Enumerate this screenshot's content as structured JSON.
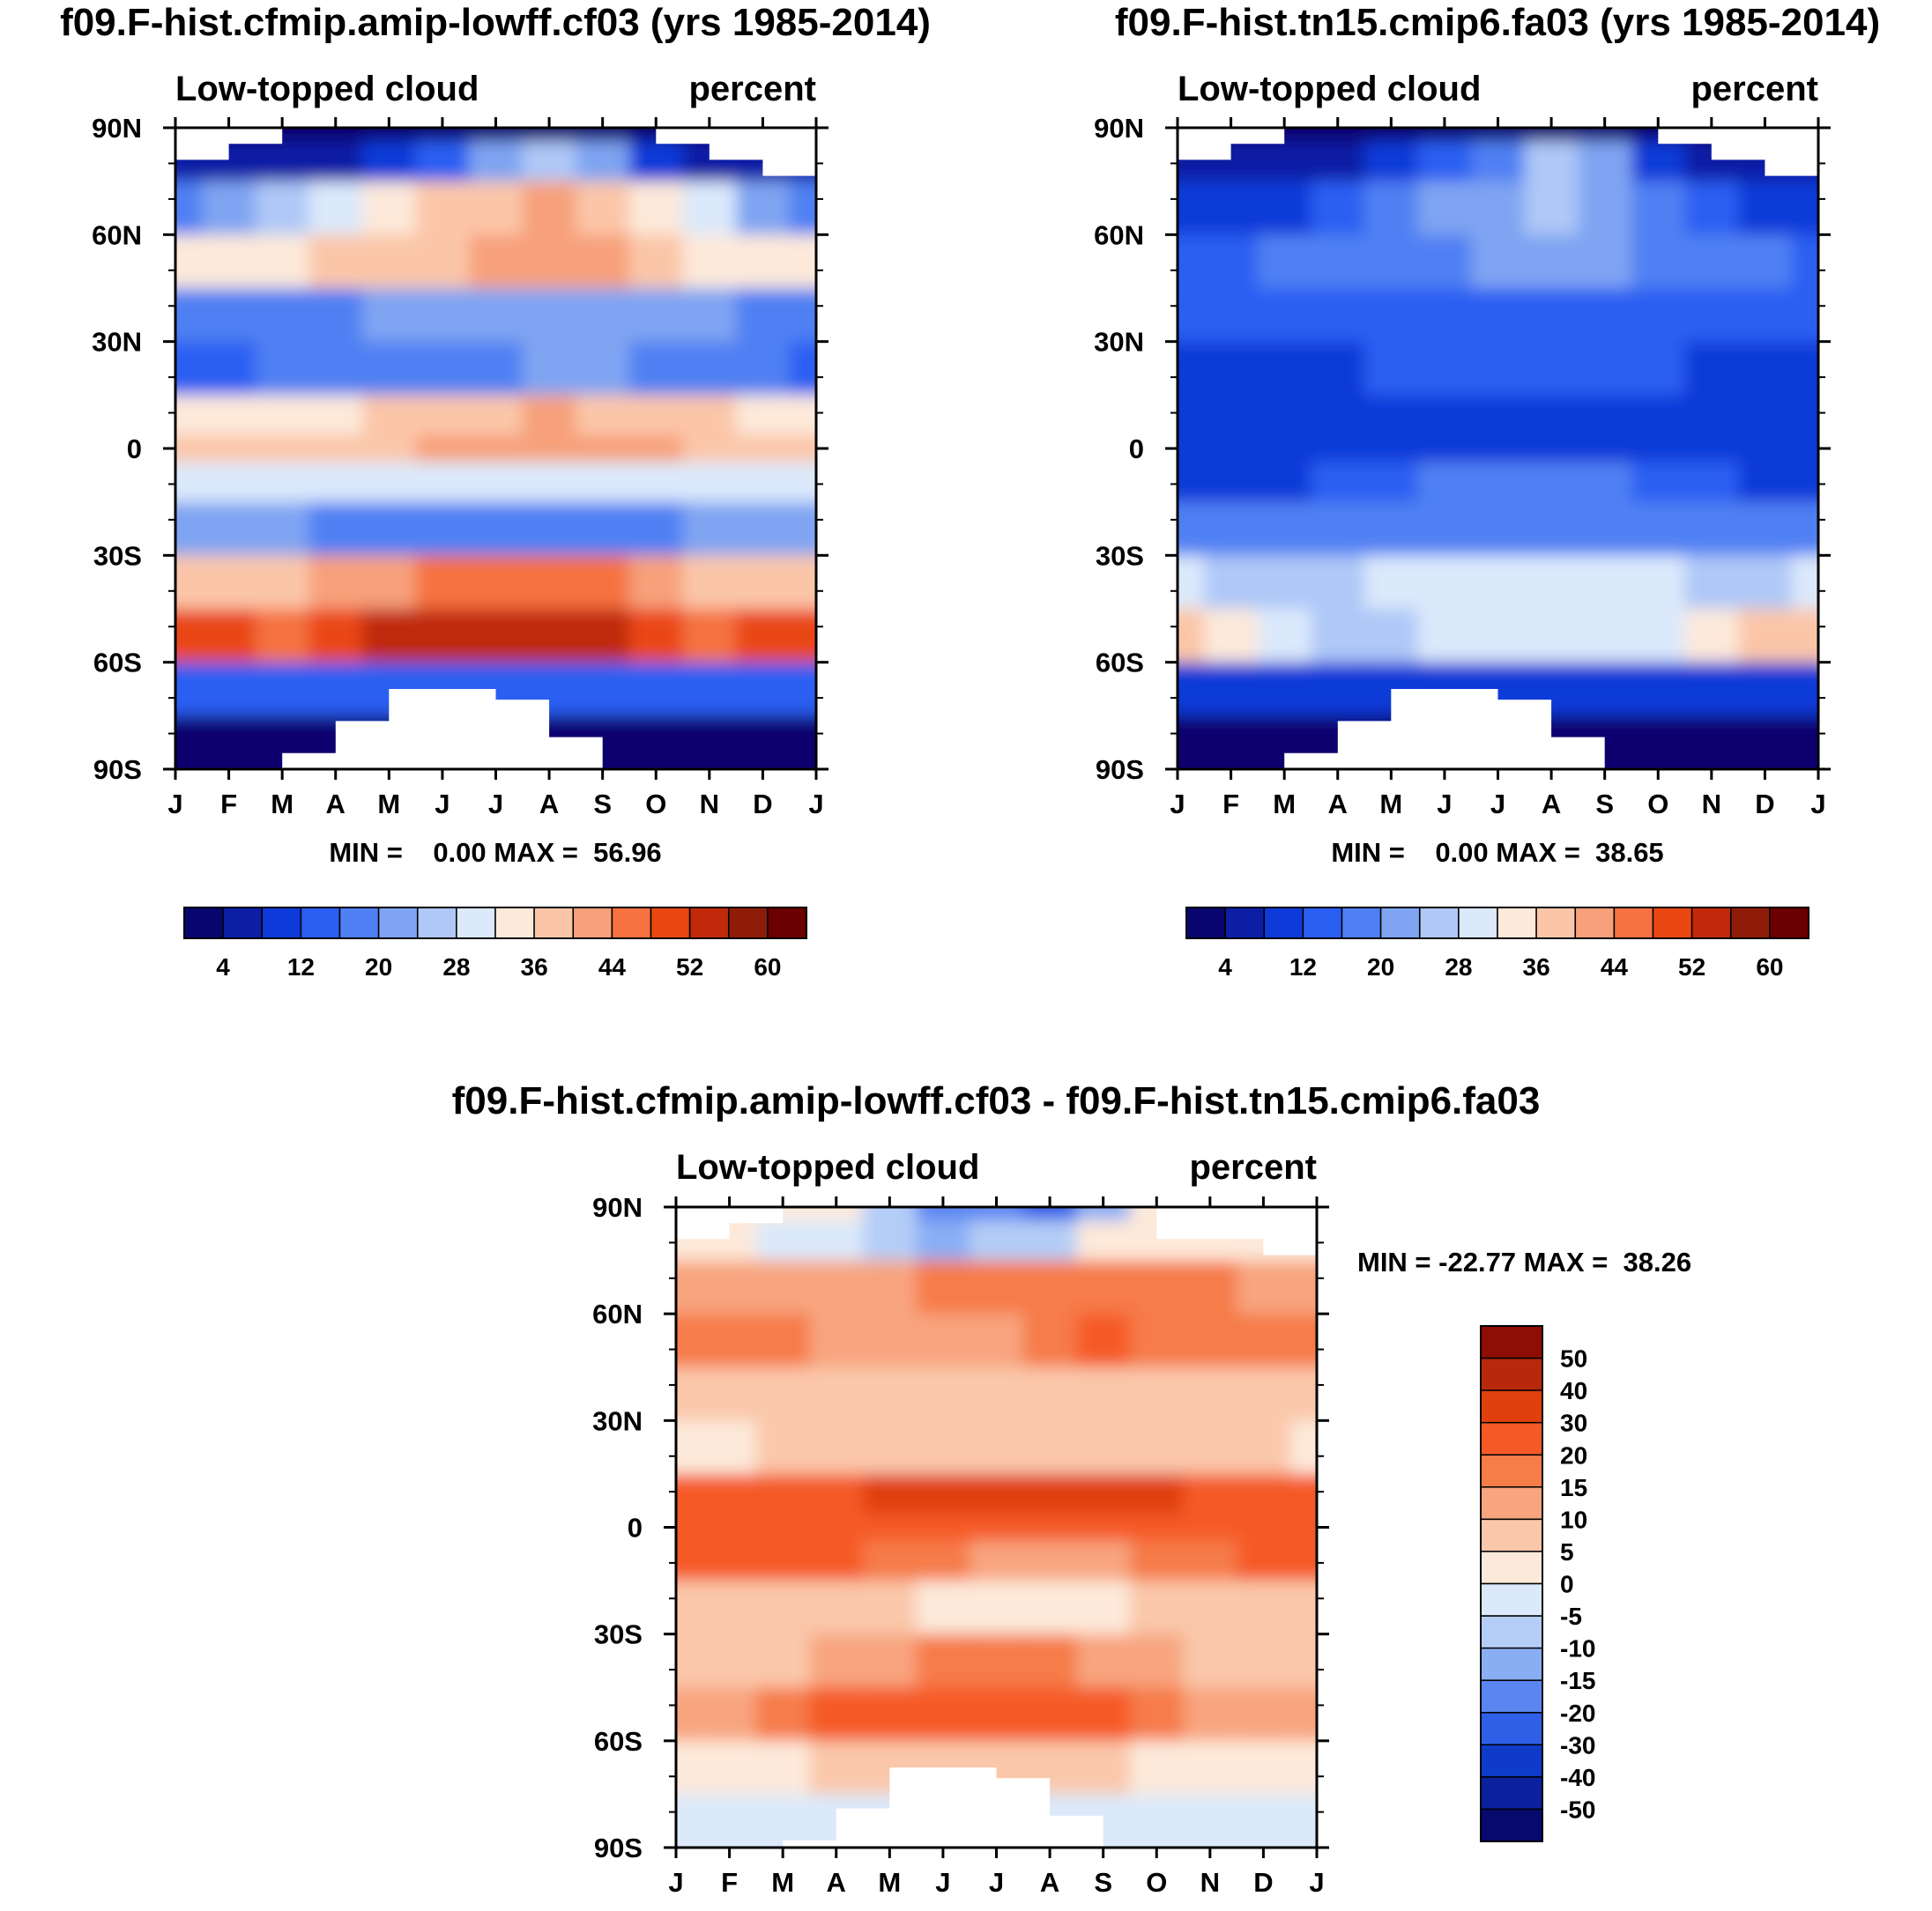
{
  "figure": {
    "panels": [
      {
        "id": "control",
        "title": "f09.F-hist.cfmip.amip-lowff.cf03 (yrs 1985-2014)",
        "left_label": "Low-topped cloud",
        "right_label": "percent",
        "minmax": "MIN =    0.00 MAX =  56.96"
      },
      {
        "id": "test",
        "title": "f09.F-hist.tn15.cmip6.fa03 (yrs 1985-2014)",
        "left_label": "Low-topped cloud",
        "right_label": "percent",
        "minmax": "MIN =    0.00 MAX =  38.65"
      },
      {
        "id": "diff",
        "title": "f09.F-hist.cfmip.amip-lowff.cf03 - f09.F-hist.tn15.cmip6.fa03",
        "left_label": "Low-topped cloud",
        "right_label": "percent",
        "minmax": "MIN = -22.77 MAX =  38.26"
      }
    ],
    "month_ticks": [
      "J",
      "F",
      "M",
      "A",
      "M",
      "J",
      "J",
      "A",
      "S",
      "O",
      "N",
      "D",
      "J"
    ],
    "lat_ticks": [
      "90N",
      "60N",
      "30N",
      "0",
      "30S",
      "60S",
      "90S"
    ],
    "abs_colorbar": {
      "labels": [
        "4",
        "12",
        "20",
        "28",
        "36",
        "44",
        "52",
        "60"
      ],
      "colors": [
        "#08066e",
        "#0c1ea4",
        "#0d3ad8",
        "#2a5ef2",
        "#4f80f3",
        "#7fa4f2",
        "#afc8f7",
        "#dbe9fb",
        "#fde9da",
        "#fbc6a8",
        "#f7a07a",
        "#f57240",
        "#ea4712",
        "#c02a0a",
        "#8e1c08",
        "#6a0000"
      ]
    },
    "diff_colorbar": {
      "labels": [
        "50",
        "40",
        "30",
        "20",
        "15",
        "10",
        "5",
        "0",
        "-5",
        "-10",
        "-15",
        "-20",
        "-30",
        "-40",
        "-50"
      ],
      "colors": [
        "#8e0e04",
        "#b8280a",
        "#e0400c",
        "#f55a26",
        "#f67c48",
        "#f8a47e",
        "#fac7aa",
        "#fde9da",
        "#dbe9fb",
        "#b4cdf7",
        "#8aaef4",
        "#5b86f1",
        "#2f5fe6",
        "#0f3bc9",
        "#0b209c",
        "#07096c"
      ]
    }
  },
  "chart_data": [
    {
      "type": "heatmap",
      "title": "f09.F-hist.cfmip.amip-lowff.cf03 (yrs 1985-2014)",
      "subtitle_left": "Low-topped cloud",
      "subtitle_right": "percent",
      "x": [
        "J",
        "F",
        "M",
        "A",
        "M",
        "J",
        "J",
        "A",
        "S",
        "O",
        "N",
        "D",
        "J"
      ],
      "y": [
        90,
        82.5,
        67.5,
        52.5,
        37.5,
        22.5,
        7.5,
        0,
        -7.5,
        -22.5,
        -37.5,
        -52.5,
        -67.5,
        -82.5,
        -90
      ],
      "xlabel": "",
      "ylabel": "",
      "levels": [
        4,
        8,
        12,
        16,
        20,
        24,
        28,
        32,
        36,
        40,
        44,
        48,
        52,
        56,
        60
      ],
      "zrange": [
        0.0,
        56.96
      ],
      "values": [
        [
          2,
          2,
          2,
          2,
          2,
          2,
          2,
          2,
          2,
          2,
          2,
          2,
          2
        ],
        [
          4,
          4,
          5,
          5,
          9,
          14,
          20,
          27,
          22,
          10,
          6,
          4,
          4
        ],
        [
          18,
          20,
          24,
          28,
          33,
          36,
          38,
          40,
          39,
          33,
          28,
          22,
          18
        ],
        [
          32,
          33,
          35,
          36,
          38,
          39,
          40,
          41,
          40,
          37,
          35,
          33,
          32
        ],
        [
          18,
          18,
          18,
          19,
          20,
          21,
          22,
          23,
          22,
          21,
          20,
          19,
          18
        ],
        [
          15,
          15,
          16,
          17,
          17,
          18,
          19,
          20,
          20,
          18,
          17,
          16,
          15
        ],
        [
          34,
          34,
          34,
          35,
          36,
          37,
          38,
          40,
          39,
          37,
          36,
          35,
          34
        ],
        [
          36,
          36,
          37,
          38,
          39,
          40,
          41,
          43,
          42,
          40,
          38,
          37,
          36
        ],
        [
          28,
          28,
          28,
          28,
          29,
          30,
          31,
          31,
          30,
          29,
          28,
          28,
          28
        ],
        [
          22,
          22,
          20,
          18,
          17,
          16,
          16,
          16,
          16,
          18,
          20,
          22,
          22
        ],
        [
          37,
          37,
          38,
          40,
          42,
          44,
          45,
          45,
          44,
          41,
          39,
          38,
          37
        ],
        [
          50,
          48,
          47,
          50,
          52,
          54,
          55,
          54,
          52,
          48,
          47,
          49,
          50
        ],
        [
          12,
          12,
          12,
          12,
          12,
          12,
          12,
          12,
          12,
          12,
          12,
          12,
          12
        ],
        [
          2,
          2,
          2,
          2,
          2,
          2,
          2,
          2,
          2,
          2,
          2,
          2,
          2
        ],
        [
          2,
          2,
          2,
          2,
          2,
          2,
          2,
          2,
          2,
          2,
          2,
          2,
          2
        ]
      ]
    },
    {
      "type": "heatmap",
      "title": "f09.F-hist.tn15.cmip6.fa03 (yrs 1985-2014)",
      "subtitle_left": "Low-topped cloud",
      "subtitle_right": "percent",
      "x": [
        "J",
        "F",
        "M",
        "A",
        "M",
        "J",
        "J",
        "A",
        "S",
        "O",
        "N",
        "D",
        "J"
      ],
      "y": [
        90,
        82.5,
        67.5,
        52.5,
        37.5,
        22.5,
        7.5,
        0,
        -7.5,
        -22.5,
        -37.5,
        -52.5,
        -67.5,
        -82.5,
        -90
      ],
      "xlabel": "",
      "ylabel": "",
      "levels": [
        4,
        8,
        12,
        16,
        20,
        24,
        28,
        32,
        36,
        40,
        44,
        48,
        52,
        56,
        60
      ],
      "zrange": [
        0.0,
        38.65
      ],
      "values": [
        [
          2,
          2,
          2,
          2,
          2,
          2,
          2,
          2,
          2,
          2,
          2,
          2,
          2
        ],
        [
          4,
          4,
          6,
          7,
          9,
          12,
          18,
          24,
          20,
          10,
          6,
          4,
          4
        ],
        [
          8,
          9,
          11,
          14,
          17,
          20,
          22,
          25,
          23,
          18,
          13,
          10,
          8
        ],
        [
          15,
          15,
          16,
          17,
          18,
          19,
          20,
          21,
          20,
          18,
          17,
          16,
          15
        ],
        [
          12,
          12,
          12,
          13,
          13,
          13,
          13,
          12,
          12,
          12,
          12,
          12,
          12
        ],
        [
          10,
          10,
          10,
          11,
          12,
          12,
          13,
          13,
          12,
          12,
          11,
          11,
          10
        ],
        [
          9,
          9,
          9,
          9,
          9,
          9,
          9,
          9,
          9,
          9,
          9,
          9,
          9
        ],
        [
          10,
          9,
          9,
          9,
          9,
          9,
          10,
          10,
          10,
          10,
          10,
          10,
          10
        ],
        [
          10,
          10,
          10,
          12,
          14,
          16,
          18,
          18,
          16,
          14,
          12,
          10,
          10
        ],
        [
          18,
          18,
          17,
          16,
          16,
          16,
          16,
          16,
          16,
          16,
          17,
          18,
          18
        ],
        [
          28,
          27,
          26,
          27,
          28,
          29,
          30,
          30,
          29,
          28,
          27,
          27,
          28
        ],
        [
          36,
          32,
          28,
          26,
          27,
          28,
          29,
          29,
          28,
          30,
          34,
          36,
          36
        ],
        [
          10,
          10,
          10,
          10,
          10,
          10,
          10,
          10,
          10,
          10,
          10,
          10,
          10
        ],
        [
          2,
          2,
          2,
          2,
          2,
          2,
          2,
          2,
          2,
          2,
          2,
          2,
          2
        ],
        [
          2,
          2,
          2,
          2,
          2,
          2,
          2,
          2,
          2,
          2,
          2,
          2,
          2
        ]
      ]
    },
    {
      "type": "heatmap",
      "title": "f09.F-hist.cfmip.amip-lowff.cf03 - f09.F-hist.tn15.cmip6.fa03",
      "subtitle_left": "Low-topped cloud",
      "subtitle_right": "percent",
      "x": [
        "J",
        "F",
        "M",
        "A",
        "M",
        "J",
        "J",
        "A",
        "S",
        "O",
        "N",
        "D",
        "J"
      ],
      "y": [
        90,
        82.5,
        67.5,
        52.5,
        37.5,
        22.5,
        7.5,
        0,
        -7.5,
        -22.5,
        -37.5,
        -52.5,
        -67.5,
        -82.5,
        -90
      ],
      "xlabel": "",
      "ylabel": "",
      "levels": [
        -50,
        -40,
        -30,
        -20,
        -15,
        -10,
        -5,
        0,
        5,
        10,
        15,
        20,
        30,
        40,
        50
      ],
      "zrange": [
        -22.77,
        38.26
      ],
      "values": [
        [
          1,
          1,
          1,
          1,
          -8,
          -16,
          -20,
          -22,
          -12,
          1,
          1,
          1,
          1
        ],
        [
          3,
          3,
          -2,
          -5,
          -10,
          -12,
          -10,
          -8,
          2,
          3,
          3,
          3,
          3
        ],
        [
          10,
          11,
          12,
          13,
          14,
          15,
          16,
          17,
          18,
          17,
          16,
          13,
          10
        ],
        [
          16,
          17,
          16,
          14,
          12,
          12,
          14,
          18,
          20,
          19,
          18,
          17,
          16
        ],
        [
          7,
          7,
          7,
          8,
          8,
          8,
          8,
          9,
          9,
          8,
          8,
          7,
          7
        ],
        [
          4,
          4,
          5,
          5,
          6,
          7,
          9,
          9,
          8,
          7,
          6,
          5,
          4
        ],
        [
          26,
          26,
          26,
          27,
          30,
          32,
          34,
          34,
          33,
          30,
          28,
          27,
          26
        ],
        [
          24,
          24,
          24,
          25,
          25,
          25,
          25,
          26,
          25,
          25,
          25,
          24,
          24
        ],
        [
          21,
          22,
          21,
          20,
          18,
          15,
          13,
          13,
          14,
          16,
          19,
          21,
          21
        ],
        [
          9,
          9,
          8,
          7,
          5,
          2,
          1,
          1,
          2,
          5,
          7,
          8,
          9
        ],
        [
          6,
          7,
          9,
          11,
          13,
          15,
          16,
          16,
          14,
          10,
          7,
          6,
          6
        ],
        [
          12,
          14,
          17,
          20,
          23,
          24,
          23,
          22,
          20,
          16,
          13,
          12,
          12
        ],
        [
          2,
          3,
          4,
          5,
          5,
          5,
          5,
          5,
          5,
          4,
          3,
          2,
          2
        ],
        [
          -2,
          -2,
          -2,
          -2,
          -2,
          -2,
          -2,
          -2,
          -2,
          -2,
          -2,
          -2,
          -2
        ],
        [
          -2,
          -2,
          -2,
          -2,
          -2,
          -2,
          -2,
          -2,
          -2,
          -2,
          -2,
          -2,
          -2
        ]
      ]
    }
  ]
}
